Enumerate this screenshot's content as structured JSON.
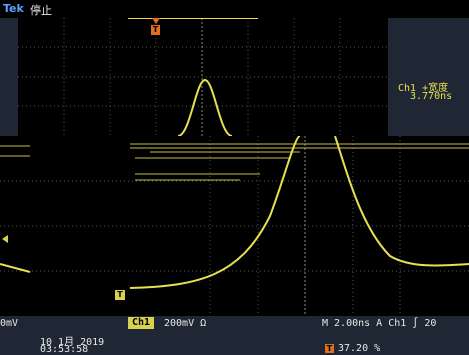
{
  "header": {
    "brand": "Tek",
    "status": "停止"
  },
  "measurement": {
    "label": "Ch1 +宽度",
    "value": "3.770ns"
  },
  "bottom": {
    "left_value": "0mV",
    "channel": "Ch1",
    "scale": "200mV Ω",
    "timebase": "M 2.00ns  A  Ch1  ∫  20",
    "date": "10 1月  2019",
    "time": "03:53:58",
    "trigger_position": "37.20 %"
  },
  "markers": {
    "trigger": "T",
    "level": "T"
  },
  "colors": {
    "trace": "#e8e050",
    "trigger": "#e07020",
    "brand": "#5aa0ff",
    "background": "#1e2733"
  }
}
